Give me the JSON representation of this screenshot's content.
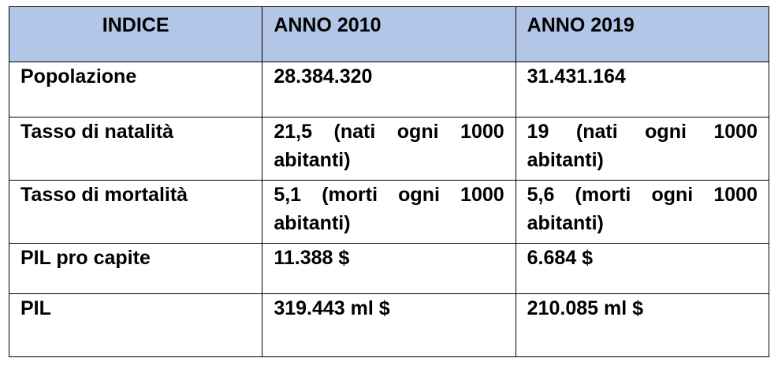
{
  "table": {
    "headers": [
      "INDICE",
      "ANNO 2010",
      "ANNO 2019"
    ],
    "rows": [
      {
        "label": "Popolazione",
        "v2010": "28.384.320",
        "v2019": "31.431.164"
      },
      {
        "label": "Tasso di natalità",
        "v2010": "21,5 (nati ogni 1000 abitanti)",
        "v2019": "19 (nati ogni 1000 abitanti)"
      },
      {
        "label": "Tasso di mortalità",
        "v2010": "5,1 (morti ogni 1000 abitanti)",
        "v2019": "5,6 (morti ogni 1000 abitanti)"
      },
      {
        "label": "PIL pro capite",
        "v2010": "11.388 $",
        "v2019": "6.684 $"
      },
      {
        "label": "PIL",
        "v2010": "319.443 ml $",
        "v2019": "210.085 ml $"
      }
    ]
  },
  "colors": {
    "header_bg": "#b4c6e7",
    "border": "#000000",
    "text": "#000000"
  }
}
